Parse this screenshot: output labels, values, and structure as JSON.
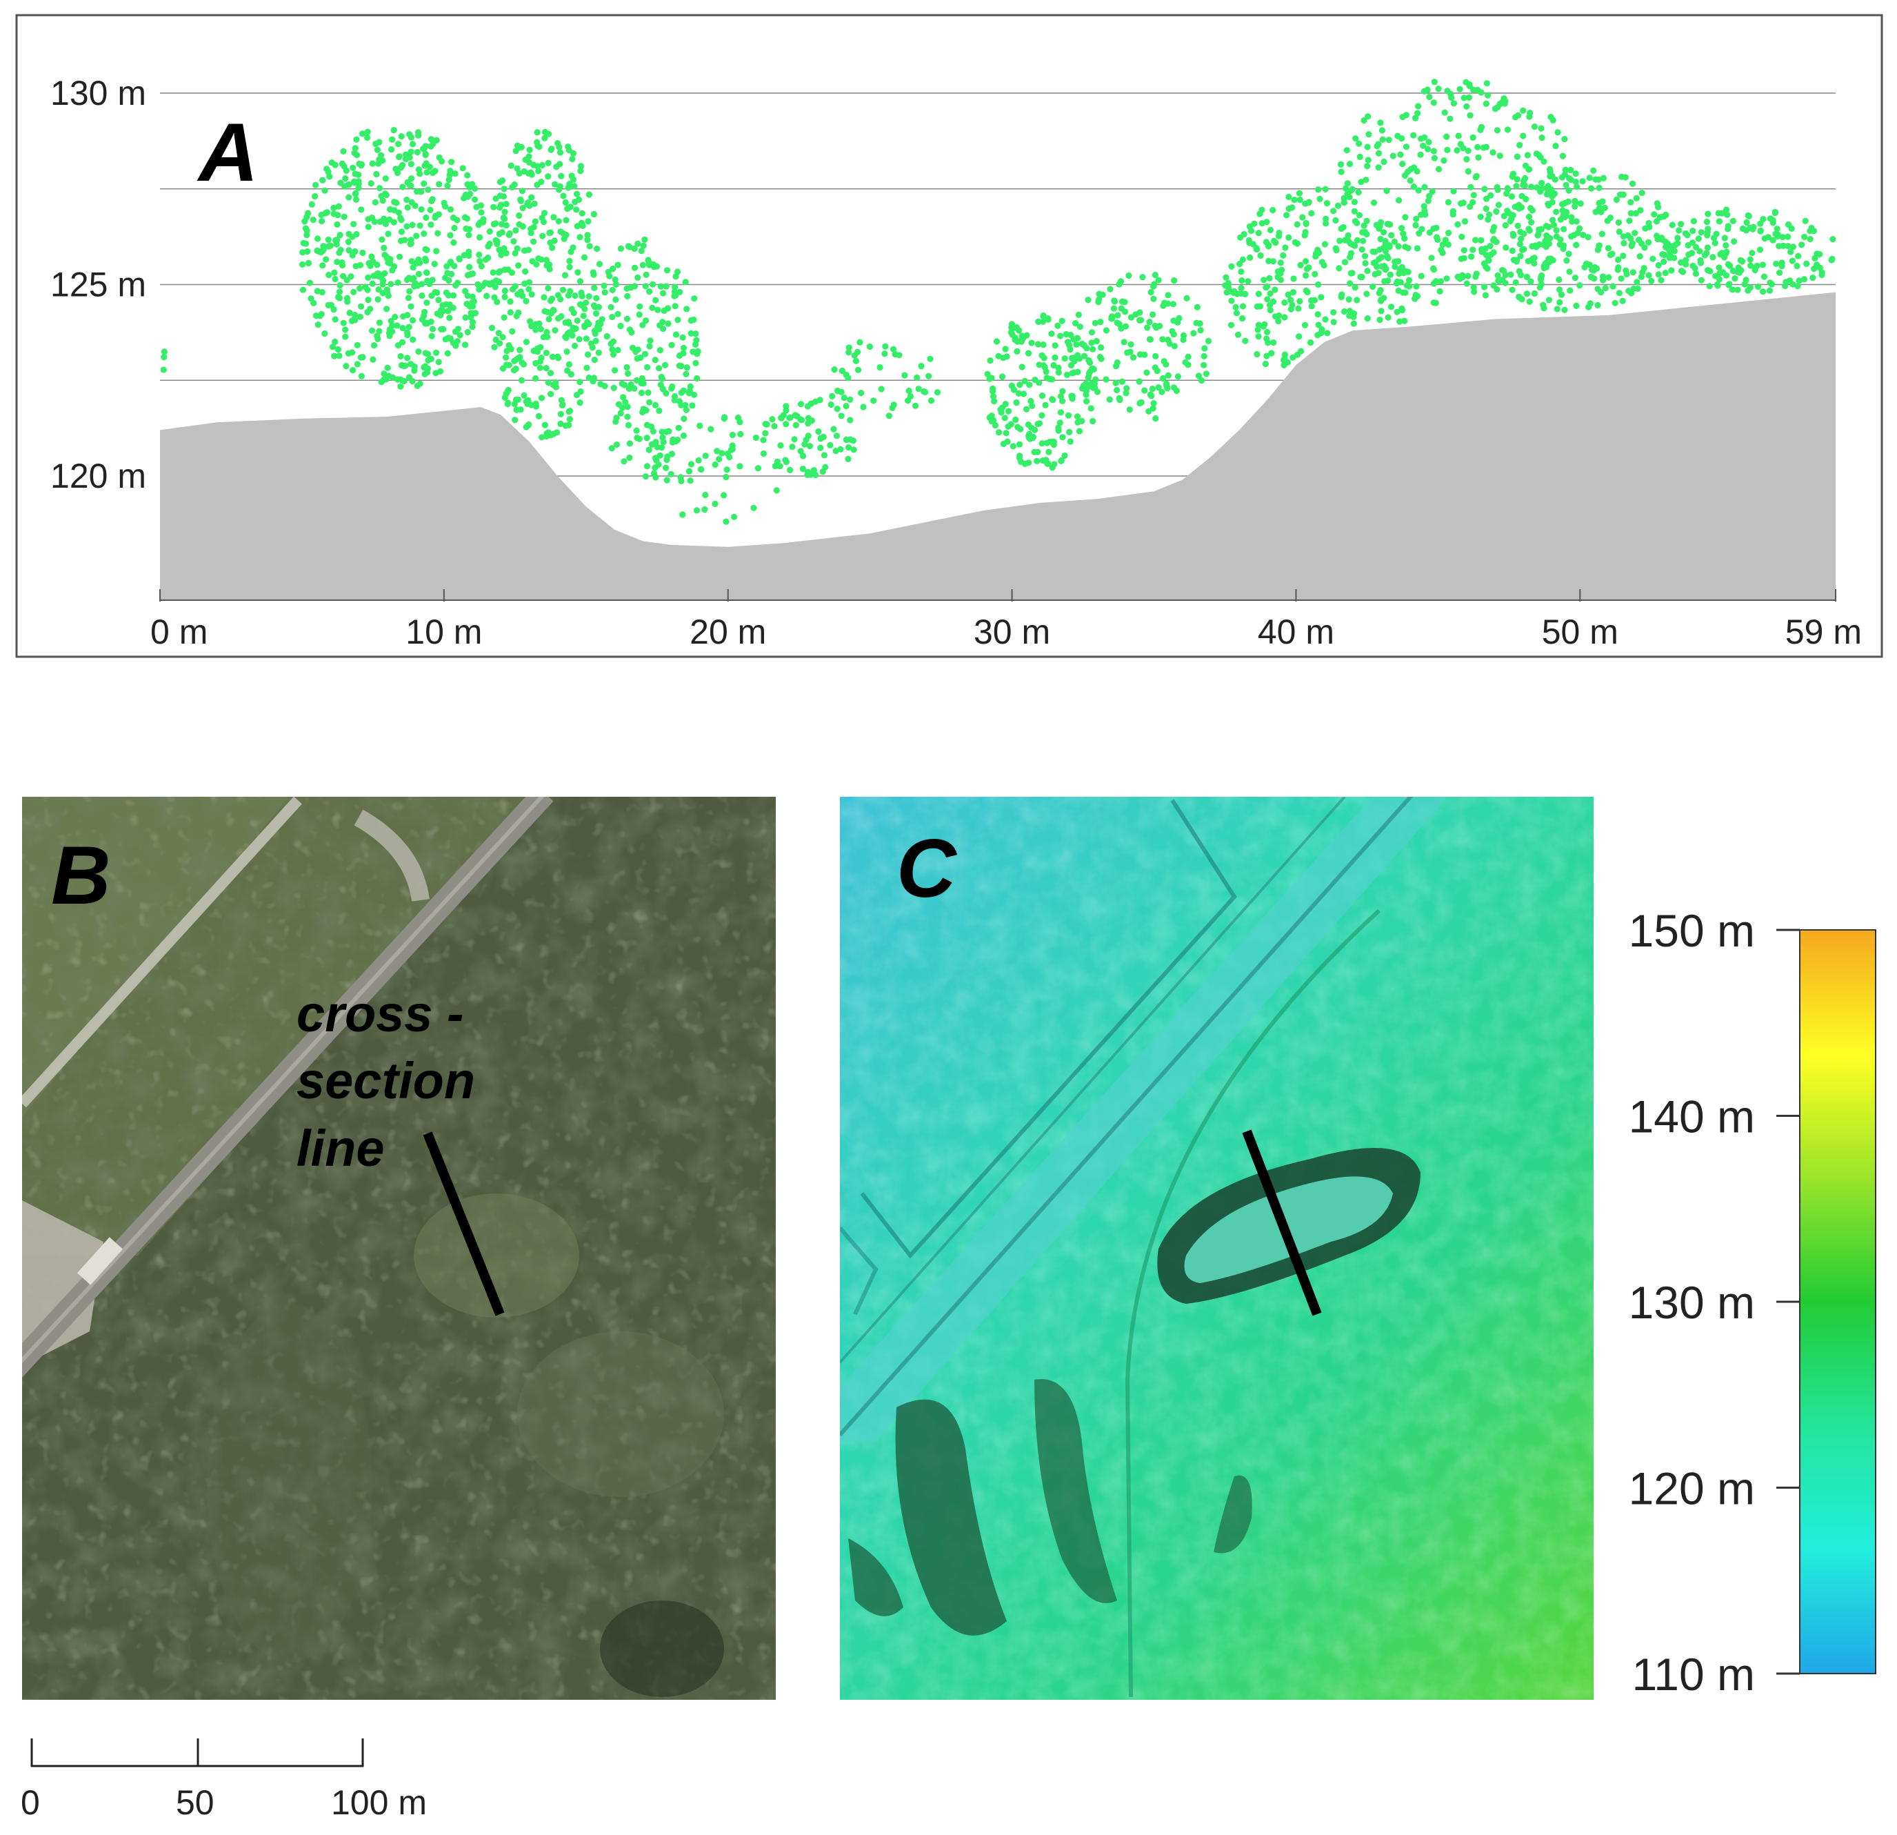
{
  "panels": {
    "a": {
      "label": "A",
      "chart_data": {
        "type": "scatter",
        "xunit": "m",
        "yunit": "m",
        "xlim": [
          0,
          59
        ],
        "ylim": [
          117.4,
          130
        ],
        "x_ticks": [
          {
            "value": 0,
            "label": "0 m"
          },
          {
            "value": 10,
            "label": "10 m"
          },
          {
            "value": 20,
            "label": "20 m"
          },
          {
            "value": 30,
            "label": "30 m"
          },
          {
            "value": 40,
            "label": "40 m"
          },
          {
            "value": 50,
            "label": "50 m"
          },
          {
            "value": 59,
            "label": "59 m"
          }
        ],
        "y_ticks": [
          {
            "value": 130,
            "label": "130 m"
          },
          {
            "value": 125,
            "label": "125 m"
          },
          {
            "value": 120,
            "label": "120 m"
          }
        ],
        "y_grid": [
          130,
          127.5,
          125,
          122.5,
          120,
          117.5
        ],
        "grid": true,
        "ground_profile": [
          [
            0,
            121.2
          ],
          [
            2,
            121.4
          ],
          [
            5,
            121.5
          ],
          [
            8,
            121.55
          ],
          [
            10,
            121.7
          ],
          [
            11.3,
            121.8
          ],
          [
            12,
            121.6
          ],
          [
            13,
            120.9
          ],
          [
            14,
            120.0
          ],
          [
            15,
            119.2
          ],
          [
            16,
            118.6
          ],
          [
            17,
            118.3
          ],
          [
            18,
            118.2
          ],
          [
            20,
            118.15
          ],
          [
            22,
            118.25
          ],
          [
            25,
            118.5
          ],
          [
            27,
            118.8
          ],
          [
            29,
            119.1
          ],
          [
            31,
            119.3
          ],
          [
            33,
            119.4
          ],
          [
            35,
            119.6
          ],
          [
            36,
            119.9
          ],
          [
            37,
            120.5
          ],
          [
            38,
            121.2
          ],
          [
            39,
            122.0
          ],
          [
            40,
            122.9
          ],
          [
            41,
            123.5
          ],
          [
            42,
            123.8
          ],
          [
            44,
            123.9
          ],
          [
            47,
            124.1
          ],
          [
            51,
            124.2
          ],
          [
            55,
            124.5
          ],
          [
            59,
            124.8
          ]
        ],
        "point_clusters": [
          {
            "x": [
              -0.2,
              0.3
            ],
            "y": [
              122.5,
              123.4
            ],
            "n": 4
          },
          {
            "x": [
              5.0,
              11.5
            ],
            "y": [
              122.3,
              129.1
            ],
            "n": 520
          },
          {
            "x": [
              11.5,
              15.5
            ],
            "y": [
              121.0,
              129.0
            ],
            "n": 360
          },
          {
            "x": [
              15.0,
              19.0
            ],
            "y": [
              120.2,
              126.2
            ],
            "n": 210
          },
          {
            "x": [
              17.0,
              22.0
            ],
            "y": [
              118.8,
              121.6
            ],
            "n": 60
          },
          {
            "x": [
              21.0,
              24.5
            ],
            "y": [
              120.0,
              122.0
            ],
            "n": 70
          },
          {
            "x": [
              23.5,
              27.5
            ],
            "y": [
              121.5,
              123.6
            ],
            "n": 45
          },
          {
            "x": [
              29.0,
              33.0
            ],
            "y": [
              120.2,
              124.2
            ],
            "n": 180
          },
          {
            "x": [
              32.0,
              37.0
            ],
            "y": [
              121.5,
              125.3
            ],
            "n": 160
          },
          {
            "x": [
              37.5,
              44.0
            ],
            "y": [
              122.5,
              127.5
            ],
            "n": 300
          },
          {
            "x": [
              41.5,
              50.0
            ],
            "y": [
              124.5,
              130.3
            ],
            "n": 330
          },
          {
            "x": [
              46.5,
              53.5
            ],
            "y": [
              124.3,
              128.0
            ],
            "n": 260
          },
          {
            "x": [
              53.0,
              59.0
            ],
            "y": [
              124.8,
              127.0
            ],
            "n": 170
          }
        ],
        "colors": {
          "points": "#33ee66",
          "ground": "#c0c0c0",
          "grid": "#555555",
          "frame": "#555555"
        }
      }
    },
    "b": {
      "label": "B",
      "annotation": [
        "cross -",
        "section",
        "line"
      ],
      "scale_bar": {
        "ticks": [
          "0",
          "50",
          "100 m"
        ]
      },
      "colors": {
        "forest": "#4f5a3e",
        "road": "#9a9890",
        "field": "#6b7a50"
      }
    },
    "c": {
      "label": "C",
      "colorbar": {
        "ticks": [
          "150 m",
          "140 m",
          "130 m",
          "120 m",
          "110 m"
        ],
        "stops": [
          "#f5a81e",
          "#ffff22",
          "#9be52a",
          "#22cc33",
          "#22e59a",
          "#22eedd",
          "#1fa7e8"
        ]
      }
    }
  }
}
